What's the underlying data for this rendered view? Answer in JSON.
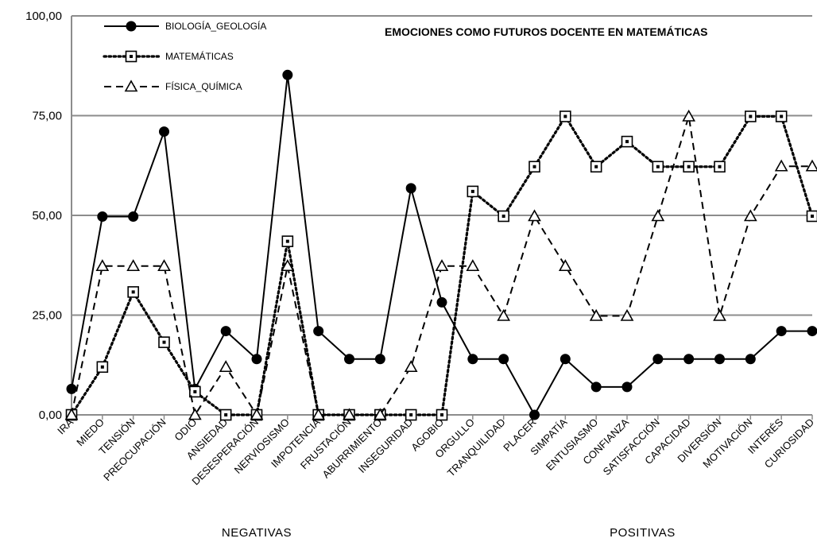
{
  "chart_data": {
    "type": "line",
    "title": "EMOCIONES COMO FUTUROS DOCENTE EN MATEMÁTICAS",
    "categories": [
      "IRA",
      "MIEDO",
      "TENSIÓN",
      "PREOCUPACIÓN",
      "ODIO",
      "ANSIEDAD",
      "DESESPERACIÓN",
      "NERVIOSISMO",
      "IMPOTENCIA",
      "FRUSTACIÓN",
      "ABURRIMIENTO",
      "INSEGURIDAD",
      "AGOBIO",
      "ORGULLO",
      "TRANQUILIDAD",
      "PLACER",
      "SIMPATÍA",
      "ENTUSIASMO",
      "CONFIANZA",
      "SATISFACCIÓN",
      "CAPACIDAD",
      "DIVERSIÓN",
      "MOTIVACIÓN",
      "INTERÉS",
      "CURIOSIDAD"
    ],
    "y_ticks": [
      "0,00",
      "25,00",
      "50,00",
      "75,00",
      "100,00"
    ],
    "ylim": [
      0,
      100
    ],
    "grid": true,
    "legend_position": "top-left",
    "group_labels": [
      {
        "label": "NEGATIVAS",
        "from": 0,
        "to": 12
      },
      {
        "label": "POSITIVAS",
        "from": 13,
        "to": 24
      }
    ],
    "series": [
      {
        "name": "BIOLOGÍA_GEOLOGÍA",
        "style": "solid",
        "marker": "circle",
        "values": [
          6.5,
          49.7,
          49.7,
          71,
          6.5,
          21,
          14,
          85.2,
          21,
          14,
          14,
          56.8,
          28.2,
          14,
          14,
          0,
          14,
          7,
          7,
          14,
          14,
          14,
          14,
          21,
          21
        ]
      },
      {
        "name": "MATEMÁTICAS",
        "style": "dotted",
        "marker": "square",
        "values": [
          0,
          12,
          30.8,
          18.2,
          5.8,
          0,
          0,
          43.5,
          0,
          0,
          0,
          0,
          0,
          56,
          49.8,
          62.2,
          74.8,
          62.2,
          68.5,
          62.2,
          62.2,
          62.2,
          74.8,
          74.8,
          49.8
        ]
      },
      {
        "name": "FÍSICA_QUÍMICA",
        "style": "dashed",
        "marker": "triangle",
        "values": [
          0,
          37.3,
          37.3,
          37.3,
          0,
          12,
          0,
          37.3,
          0,
          0,
          0,
          12,
          37.3,
          37.3,
          24.8,
          49.8,
          37.3,
          24.8,
          24.8,
          49.8,
          74.8,
          24.8,
          49.8,
          62.3,
          62.3
        ]
      }
    ]
  }
}
